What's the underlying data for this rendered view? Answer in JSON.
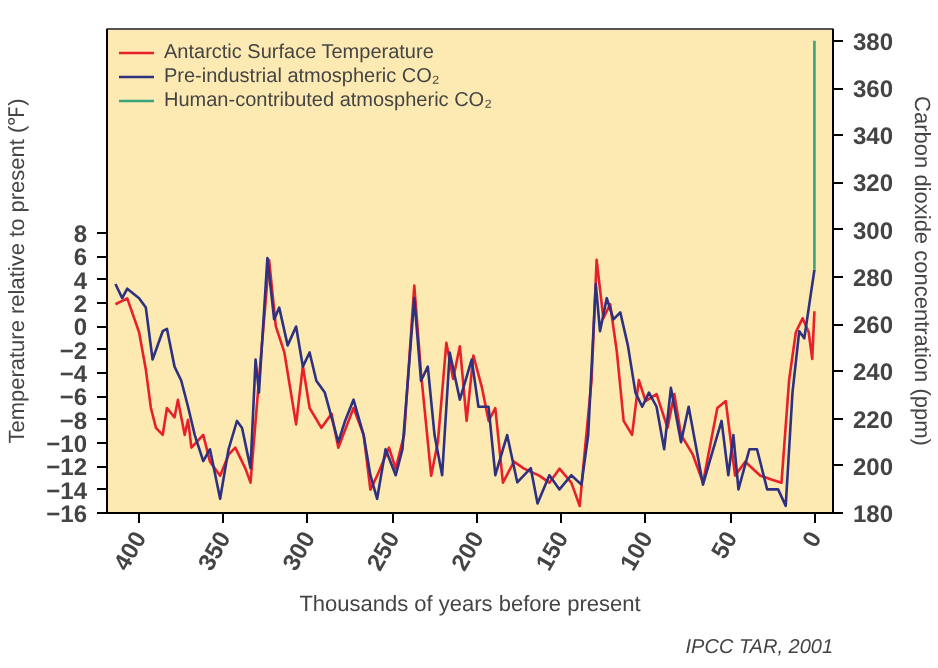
{
  "chart_data": {
    "type": "line",
    "xlabel": "Thousands of years before present",
    "ylabel": "Temperature relative to present (℉)",
    "y2label": "Carbon dioxide concentration (ppm)",
    "annotations": [
      "IPCC TAR, 2001"
    ],
    "xlim": [
      419,
      -11
    ],
    "xticks": [
      400,
      350,
      300,
      250,
      200,
      150,
      100,
      50,
      0
    ],
    "ylim": [
      -16,
      25.5
    ],
    "yticks": [
      -16,
      -14,
      -12,
      -10,
      -8,
      -6,
      -4,
      -2,
      0,
      2,
      4,
      6,
      8
    ],
    "y2lim": [
      180,
      385
    ],
    "y2ticks": [
      180,
      200,
      220,
      240,
      260,
      280,
      300,
      320,
      340,
      360,
      380
    ],
    "legend": "top left",
    "series": [
      {
        "name": "Antarctic Surface Temperature",
        "color": "#e8202a",
        "axis": "y",
        "x": [
          414,
          407,
          400,
          396,
          393,
          390,
          386,
          383.5,
          379,
          377,
          373,
          371,
          369,
          362,
          358,
          352,
          347,
          343,
          337,
          334,
          329,
          323,
          319,
          314,
          307,
          303,
          299,
          292,
          286,
          282,
          273,
          267,
          263,
          259,
          252,
          248,
          243,
          237,
          233,
          227,
          223,
          218,
          214,
          210,
          206,
          202,
          197,
          193,
          189,
          184.5,
          178,
          172,
          163,
          157,
          151,
          144,
          139,
          137,
          132,
          129,
          125,
          121,
          117,
          113,
          108,
          104,
          100,
          93.5,
          87,
          83,
          79,
          72,
          66,
          57.5,
          52.5,
          47,
          41,
          32,
          26,
          19.5,
          15,
          11,
          7,
          3.4,
          1.3,
          0
        ],
        "values": [
          1.9,
          2.4,
          -0.5,
          -3.7,
          -7,
          -8.7,
          -9.3,
          -7,
          -7.8,
          -6.3,
          -9.3,
          -8,
          -10.4,
          -9.3,
          -11.6,
          -12.8,
          -11,
          -10.4,
          -12.2,
          -13.4,
          -4.6,
          5.7,
          0,
          -2.2,
          -8.4,
          -3.4,
          -7,
          -8.7,
          -7.5,
          -10.4,
          -7,
          -9.3,
          -14,
          -12.8,
          -10.4,
          -12.2,
          -9.3,
          3.5,
          -4,
          -12.8,
          -9.9,
          -1.4,
          -4.5,
          -1.7,
          -8.1,
          -2.5,
          -5.2,
          -8.1,
          -7,
          -13.4,
          -11.6,
          -12.2,
          -12.8,
          -13.4,
          -12.2,
          -13.4,
          -15.4,
          -12.2,
          -4.6,
          5.7,
          0.7,
          1.9,
          -2.2,
          -8.1,
          -9.3,
          -4.6,
          -6.4,
          -5.8,
          -8.7,
          -5.8,
          -9.3,
          -11,
          -13.4,
          -7,
          -6.4,
          -12.8,
          -11.6,
          -12.8,
          -13.1,
          -13.4,
          -4.6,
          -0.5,
          0.7,
          -0.5,
          -2.8,
          1.3
        ]
      },
      {
        "name": "Pre-industrial atmospheric CO₂",
        "color": "#2e3180",
        "axis": "y2",
        "x": [
          414,
          410,
          407,
          400,
          396,
          392,
          386,
          383.5,
          379,
          375,
          371,
          367,
          362,
          358,
          352,
          347,
          342,
          339,
          334,
          331,
          329,
          324,
          320,
          317,
          312,
          307,
          303,
          299,
          295,
          290,
          282,
          278,
          273,
          267,
          263,
          259,
          254,
          248,
          244,
          237,
          233,
          229,
          225,
          220.5,
          216,
          210,
          203,
          199,
          193,
          189,
          182,
          176,
          168,
          164,
          157,
          151,
          144,
          138,
          134,
          129.5,
          127,
          123,
          119,
          115,
          110.5,
          106,
          102,
          98,
          93.5,
          89,
          85,
          79,
          74.5,
          66,
          62,
          55,
          51,
          48,
          45,
          38.5,
          34,
          28,
          21.5,
          17,
          13,
          9,
          6,
          2.5,
          0
        ],
        "values": [
          277,
          271,
          275,
          271,
          267,
          245,
          257,
          258,
          242,
          236,
          225,
          213,
          202,
          207,
          186,
          207,
          219,
          216,
          199,
          245,
          231,
          288,
          262,
          267,
          251,
          259,
          242,
          248,
          236,
          231,
          210,
          219,
          228,
          213,
          196,
          186,
          207,
          196,
          207,
          271,
          236,
          242,
          213,
          196,
          248,
          228,
          245,
          225,
          225,
          196,
          213,
          193,
          199,
          184,
          196,
          190,
          196,
          192,
          213,
          277,
          257,
          271,
          262,
          265,
          251,
          231,
          225,
          231,
          225,
          207,
          233,
          210,
          225,
          192,
          202,
          219,
          196,
          213,
          190,
          207,
          207,
          190,
          190,
          183,
          231,
          257,
          254,
          271,
          283
        ]
      },
      {
        "name": "Human-contributed atmospheric CO₂",
        "color": "#3aa37a",
        "axis": "y2",
        "x": [
          0,
          0
        ],
        "values": [
          283,
          380
        ]
      }
    ]
  }
}
